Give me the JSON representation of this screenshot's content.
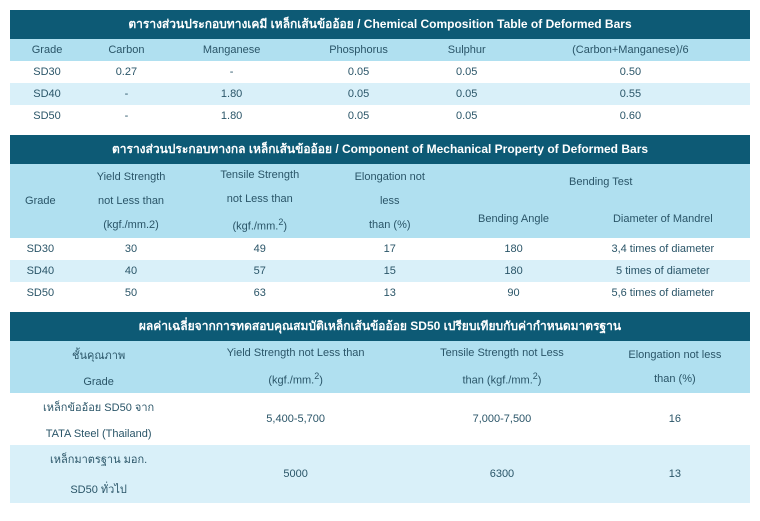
{
  "colors": {
    "titleBg": "#0d5a75",
    "titleText": "#ffffff",
    "headerBg": "#b0e0f0",
    "headerText": "#2a5568",
    "rowLight": "#ffffff",
    "rowAlt": "#d9f0f9",
    "dataText": "#2a5568"
  },
  "table1": {
    "title": "ตารางส่วนประกอบทางเคมี เหล็กเส้นข้ออ้อย / Chemical Composition Table of Deformed Bars",
    "headers": [
      "Grade",
      "Carbon",
      "Manganese",
      "Phosphorus",
      "Sulphur",
      "(Carbon+Manganese)/6"
    ],
    "rows": [
      [
        "SD30",
        "0.27",
        "-",
        "0.05",
        "0.05",
        "0.50"
      ],
      [
        "SD40",
        "-",
        "1.80",
        "0.05",
        "0.05",
        "0.55"
      ],
      [
        "SD50",
        "-",
        "1.80",
        "0.05",
        "0.05",
        "0.60"
      ]
    ]
  },
  "table2": {
    "title": "ตารางส่วนประกอบทางกล เหล็กเส้นข้ออ้อย / Component of Mechanical Property of Deformed Bars",
    "h_grade": "Grade",
    "h_yield_l1": "Yield Strength",
    "h_yield_l2": "not Less than",
    "h_yield_l3": "(kgf./mm.2)",
    "h_tensile_l1": "Tensile Strength",
    "h_tensile_l2": "not Less than",
    "h_tensile_unit_a": "(kgf./mm.",
    "h_tensile_unit_b": ")",
    "h_elong_l1": "Elongation not",
    "h_elong_l2": "less",
    "h_elong_l3": "than (%)",
    "h_bend": "Bending Test",
    "h_bend_angle": "Bending Angle",
    "h_bend_mandrel": "Diameter of Mandrel",
    "rows": [
      [
        "SD30",
        "30",
        "49",
        "17",
        "180",
        "3,4 times of diameter"
      ],
      [
        "SD40",
        "40",
        "57",
        "15",
        "180",
        "5 times of diameter"
      ],
      [
        "SD50",
        "50",
        "63",
        "13",
        "90",
        "5,6 times of diameter"
      ]
    ]
  },
  "table3": {
    "title": "ผลค่าเฉลี่ยจากการทดสอบคุณสมบัติเหล็กเส้นข้ออ้อย SD50 เปรียบเทียบกับค่ากำหนดมาตรฐาน",
    "h_grade_l1": "ชั้นคุณภาพ",
    "h_grade_l2": "Grade",
    "h_yield_l1": "Yield Strength not Less than",
    "h_unit_a": "(kgf./mm.",
    "h_unit_b": ")",
    "h_tensile_l1": "Tensile Strength not Less",
    "h_tensile_l2a": "than (kgf./mm.",
    "h_tensile_l2b": ")",
    "h_elong_l1": "Elongation not less",
    "h_elong_l2": "than (%)",
    "r1_label_l1": "เหล็กข้ออ้อย SD50 จาก",
    "r1_label_l2": "TATA Steel (Thailand)",
    "r1_yield": "5,400-5,700",
    "r1_tensile": "7,000-7,500",
    "r1_elong": "16",
    "r2_label_l1": "เหล็กมาตรฐาน มอก.",
    "r2_label_l2": "SD50 ทั่วไป",
    "r2_yield": "5000",
    "r2_tensile": "6300",
    "r2_elong": "13"
  }
}
